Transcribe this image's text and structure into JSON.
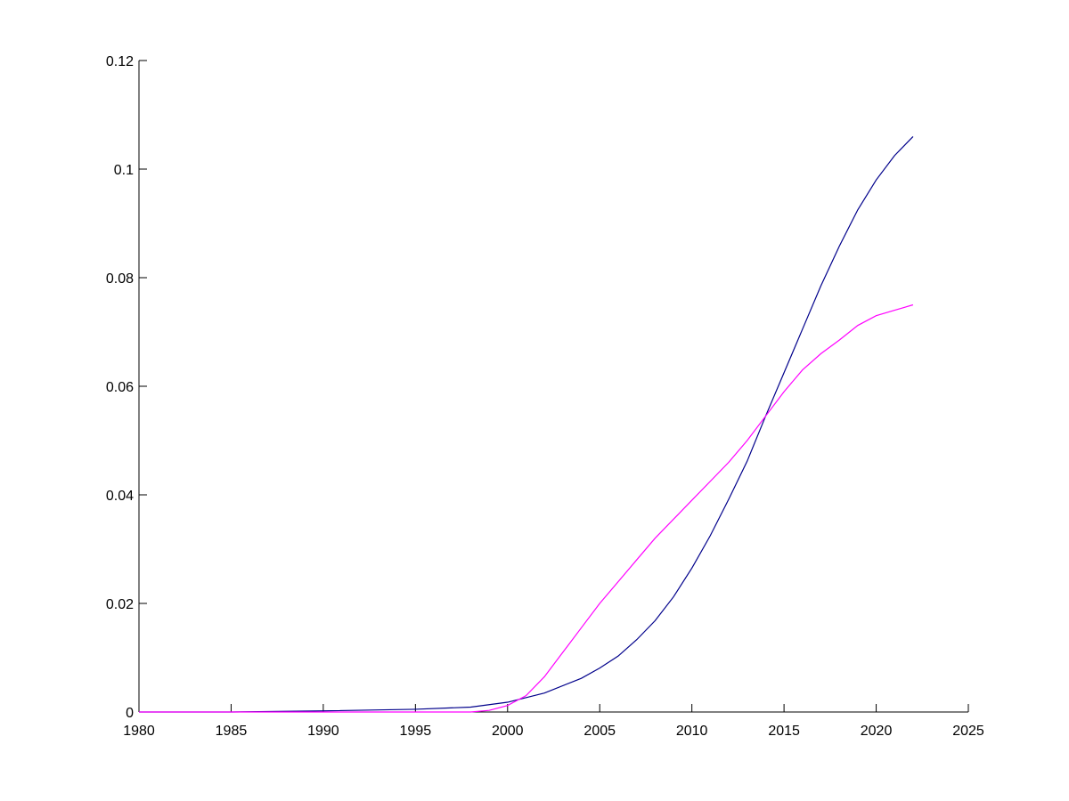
{
  "chart_data": {
    "type": "line",
    "title": "",
    "xlabel": "",
    "ylabel": "",
    "xlim": [
      1980,
      2025
    ],
    "ylim": [
      0,
      0.12
    ],
    "x_ticks": [
      1980,
      1985,
      1990,
      1995,
      2000,
      2005,
      2010,
      2015,
      2020,
      2025
    ],
    "x_tick_labels": [
      "1980",
      "1985",
      "1990",
      "1995",
      "2000",
      "2005",
      "2010",
      "2015",
      "2020",
      "2025"
    ],
    "y_ticks": [
      0,
      0.02,
      0.04,
      0.06,
      0.08,
      0.1,
      0.12
    ],
    "y_tick_labels": [
      "0",
      "0.02",
      "0.04",
      "0.06",
      "0.08",
      "0.1",
      "0.12"
    ],
    "grid": false,
    "legend": "none",
    "series": [
      {
        "color": "#00008b",
        "points": [
          [
            1980,
            0.0
          ],
          [
            1985,
            0.0
          ],
          [
            1990,
            0.0002
          ],
          [
            1995,
            0.0005
          ],
          [
            1998,
            0.0009
          ],
          [
            2000,
            0.0018
          ],
          [
            2002,
            0.0035
          ],
          [
            2004,
            0.0062
          ],
          [
            2005,
            0.0081
          ],
          [
            2006,
            0.0103
          ],
          [
            2007,
            0.0133
          ],
          [
            2008,
            0.0168
          ],
          [
            2009,
            0.0212
          ],
          [
            2010,
            0.0265
          ],
          [
            2011,
            0.0325
          ],
          [
            2012,
            0.0392
          ],
          [
            2013,
            0.0462
          ],
          [
            2014,
            0.0545
          ],
          [
            2015,
            0.0625
          ],
          [
            2016,
            0.0705
          ],
          [
            2017,
            0.0785
          ],
          [
            2018,
            0.0858
          ],
          [
            2019,
            0.0925
          ],
          [
            2020,
            0.098
          ],
          [
            2021,
            0.1025
          ],
          [
            2022,
            0.106
          ]
        ]
      },
      {
        "color": "#ff00ff",
        "points": [
          [
            1980,
            0.0
          ],
          [
            1998,
            0.0
          ],
          [
            1999,
            0.0003
          ],
          [
            2000,
            0.0012
          ],
          [
            2001,
            0.003
          ],
          [
            2002,
            0.0065
          ],
          [
            2003,
            0.011
          ],
          [
            2004,
            0.0155
          ],
          [
            2005,
            0.02
          ],
          [
            2006,
            0.024
          ],
          [
            2007,
            0.028
          ],
          [
            2008,
            0.032
          ],
          [
            2009,
            0.0355
          ],
          [
            2010,
            0.039
          ],
          [
            2011,
            0.0425
          ],
          [
            2012,
            0.046
          ],
          [
            2013,
            0.05
          ],
          [
            2014,
            0.0545
          ],
          [
            2015,
            0.059
          ],
          [
            2016,
            0.063
          ],
          [
            2017,
            0.066
          ],
          [
            2018,
            0.0685
          ],
          [
            2019,
            0.0712
          ],
          [
            2020,
            0.073
          ],
          [
            2021,
            0.074
          ],
          [
            2022,
            0.075
          ]
        ]
      }
    ]
  }
}
